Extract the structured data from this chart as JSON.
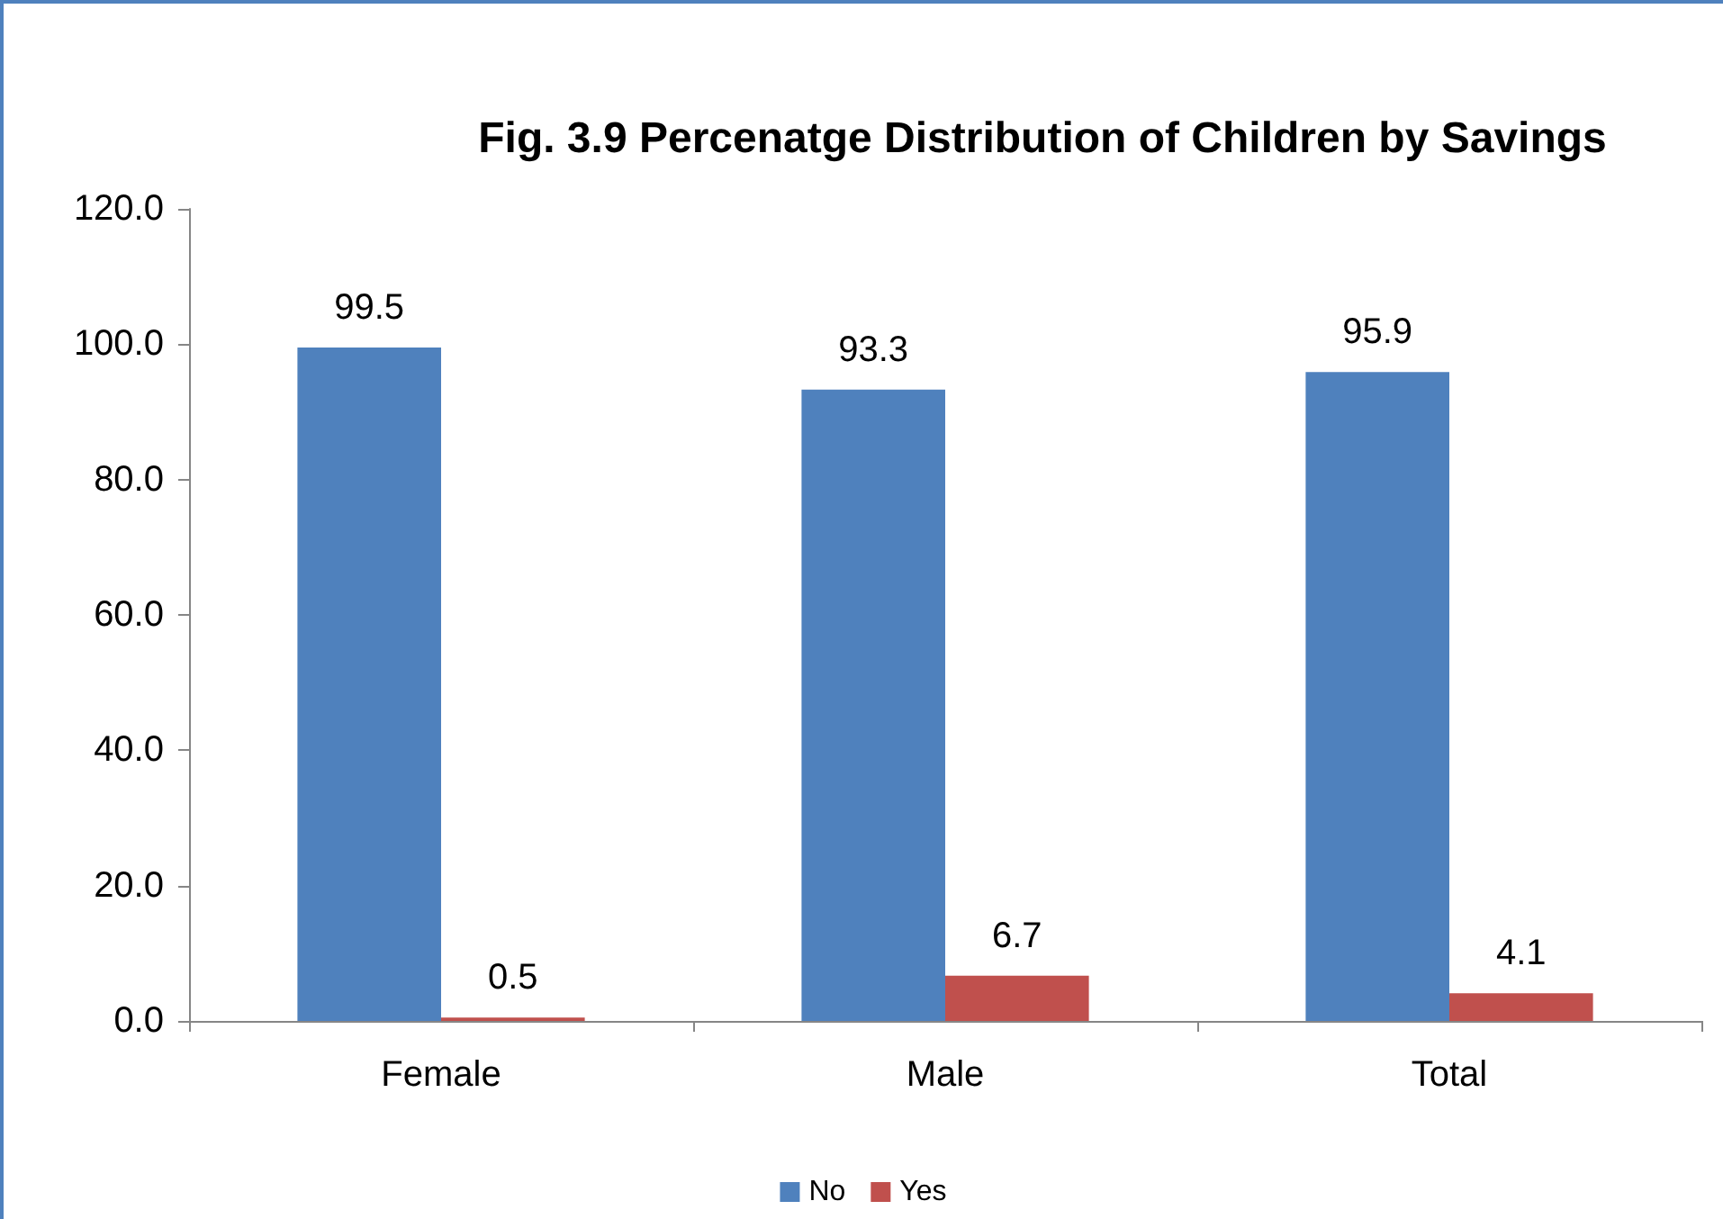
{
  "chart_data": {
    "type": "bar",
    "title": "Fig. 3.9 Percenatge Distribution of Children by Savings",
    "categories": [
      "Female",
      "Male",
      "Total"
    ],
    "series": [
      {
        "name": "No",
        "color": "#4f81bd",
        "values": [
          99.5,
          93.3,
          95.9
        ]
      },
      {
        "name": "Yes",
        "color": "#c0504d",
        "values": [
          0.5,
          6.7,
          4.1
        ]
      }
    ],
    "ylim": [
      0,
      120
    ],
    "yticks": [
      {
        "value": 0,
        "label": "0.0"
      },
      {
        "value": 20,
        "label": "20.0"
      },
      {
        "value": 40,
        "label": "40.0"
      },
      {
        "value": 60,
        "label": "60.0"
      },
      {
        "value": 80,
        "label": "80.0"
      },
      {
        "value": 100,
        "label": "100.0"
      },
      {
        "value": 120,
        "label": "120.0"
      }
    ],
    "data_labels": true,
    "grid": false,
    "legend": "bottom"
  }
}
